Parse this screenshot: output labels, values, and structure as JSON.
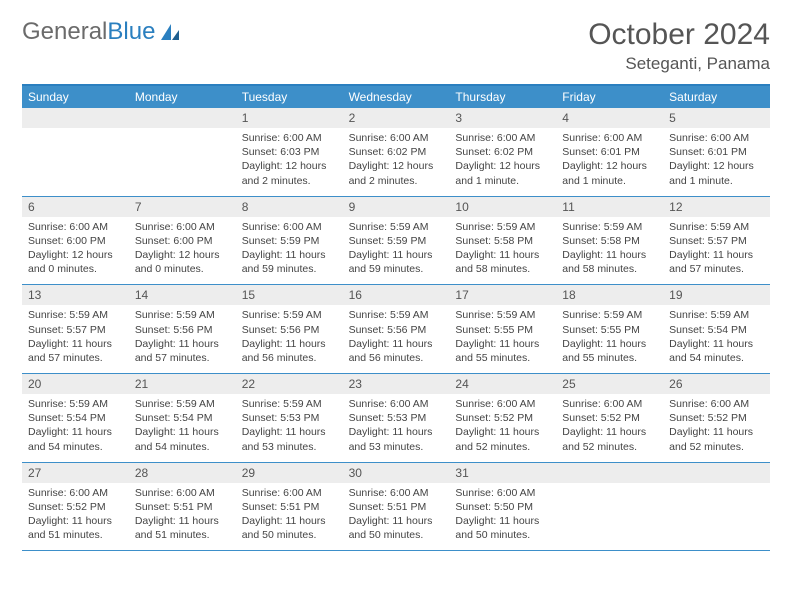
{
  "logo": {
    "text1": "General",
    "text2": "Blue"
  },
  "title": "October 2024",
  "location": "Seteganti, Panama",
  "colors": {
    "header_bg": "#3d8fc9",
    "border": "#2a7fbf",
    "daynum_bg": "#ededed",
    "text": "#444444"
  },
  "weekdays": [
    "Sunday",
    "Monday",
    "Tuesday",
    "Wednesday",
    "Thursday",
    "Friday",
    "Saturday"
  ],
  "weeks": [
    {
      "nums": [
        "",
        "",
        "1",
        "2",
        "3",
        "4",
        "5"
      ],
      "cells": [
        {
          "sunrise": "",
          "sunset": "",
          "daylight": ""
        },
        {
          "sunrise": "",
          "sunset": "",
          "daylight": ""
        },
        {
          "sunrise": "Sunrise: 6:00 AM",
          "sunset": "Sunset: 6:03 PM",
          "daylight": "Daylight: 12 hours and 2 minutes."
        },
        {
          "sunrise": "Sunrise: 6:00 AM",
          "sunset": "Sunset: 6:02 PM",
          "daylight": "Daylight: 12 hours and 2 minutes."
        },
        {
          "sunrise": "Sunrise: 6:00 AM",
          "sunset": "Sunset: 6:02 PM",
          "daylight": "Daylight: 12 hours and 1 minute."
        },
        {
          "sunrise": "Sunrise: 6:00 AM",
          "sunset": "Sunset: 6:01 PM",
          "daylight": "Daylight: 12 hours and 1 minute."
        },
        {
          "sunrise": "Sunrise: 6:00 AM",
          "sunset": "Sunset: 6:01 PM",
          "daylight": "Daylight: 12 hours and 1 minute."
        }
      ]
    },
    {
      "nums": [
        "6",
        "7",
        "8",
        "9",
        "10",
        "11",
        "12"
      ],
      "cells": [
        {
          "sunrise": "Sunrise: 6:00 AM",
          "sunset": "Sunset: 6:00 PM",
          "daylight": "Daylight: 12 hours and 0 minutes."
        },
        {
          "sunrise": "Sunrise: 6:00 AM",
          "sunset": "Sunset: 6:00 PM",
          "daylight": "Daylight: 12 hours and 0 minutes."
        },
        {
          "sunrise": "Sunrise: 6:00 AM",
          "sunset": "Sunset: 5:59 PM",
          "daylight": "Daylight: 11 hours and 59 minutes."
        },
        {
          "sunrise": "Sunrise: 5:59 AM",
          "sunset": "Sunset: 5:59 PM",
          "daylight": "Daylight: 11 hours and 59 minutes."
        },
        {
          "sunrise": "Sunrise: 5:59 AM",
          "sunset": "Sunset: 5:58 PM",
          "daylight": "Daylight: 11 hours and 58 minutes."
        },
        {
          "sunrise": "Sunrise: 5:59 AM",
          "sunset": "Sunset: 5:58 PM",
          "daylight": "Daylight: 11 hours and 58 minutes."
        },
        {
          "sunrise": "Sunrise: 5:59 AM",
          "sunset": "Sunset: 5:57 PM",
          "daylight": "Daylight: 11 hours and 57 minutes."
        }
      ]
    },
    {
      "nums": [
        "13",
        "14",
        "15",
        "16",
        "17",
        "18",
        "19"
      ],
      "cells": [
        {
          "sunrise": "Sunrise: 5:59 AM",
          "sunset": "Sunset: 5:57 PM",
          "daylight": "Daylight: 11 hours and 57 minutes."
        },
        {
          "sunrise": "Sunrise: 5:59 AM",
          "sunset": "Sunset: 5:56 PM",
          "daylight": "Daylight: 11 hours and 57 minutes."
        },
        {
          "sunrise": "Sunrise: 5:59 AM",
          "sunset": "Sunset: 5:56 PM",
          "daylight": "Daylight: 11 hours and 56 minutes."
        },
        {
          "sunrise": "Sunrise: 5:59 AM",
          "sunset": "Sunset: 5:56 PM",
          "daylight": "Daylight: 11 hours and 56 minutes."
        },
        {
          "sunrise": "Sunrise: 5:59 AM",
          "sunset": "Sunset: 5:55 PM",
          "daylight": "Daylight: 11 hours and 55 minutes."
        },
        {
          "sunrise": "Sunrise: 5:59 AM",
          "sunset": "Sunset: 5:55 PM",
          "daylight": "Daylight: 11 hours and 55 minutes."
        },
        {
          "sunrise": "Sunrise: 5:59 AM",
          "sunset": "Sunset: 5:54 PM",
          "daylight": "Daylight: 11 hours and 54 minutes."
        }
      ]
    },
    {
      "nums": [
        "20",
        "21",
        "22",
        "23",
        "24",
        "25",
        "26"
      ],
      "cells": [
        {
          "sunrise": "Sunrise: 5:59 AM",
          "sunset": "Sunset: 5:54 PM",
          "daylight": "Daylight: 11 hours and 54 minutes."
        },
        {
          "sunrise": "Sunrise: 5:59 AM",
          "sunset": "Sunset: 5:54 PM",
          "daylight": "Daylight: 11 hours and 54 minutes."
        },
        {
          "sunrise": "Sunrise: 5:59 AM",
          "sunset": "Sunset: 5:53 PM",
          "daylight": "Daylight: 11 hours and 53 minutes."
        },
        {
          "sunrise": "Sunrise: 6:00 AM",
          "sunset": "Sunset: 5:53 PM",
          "daylight": "Daylight: 11 hours and 53 minutes."
        },
        {
          "sunrise": "Sunrise: 6:00 AM",
          "sunset": "Sunset: 5:52 PM",
          "daylight": "Daylight: 11 hours and 52 minutes."
        },
        {
          "sunrise": "Sunrise: 6:00 AM",
          "sunset": "Sunset: 5:52 PM",
          "daylight": "Daylight: 11 hours and 52 minutes."
        },
        {
          "sunrise": "Sunrise: 6:00 AM",
          "sunset": "Sunset: 5:52 PM",
          "daylight": "Daylight: 11 hours and 52 minutes."
        }
      ]
    },
    {
      "nums": [
        "27",
        "28",
        "29",
        "30",
        "31",
        "",
        ""
      ],
      "cells": [
        {
          "sunrise": "Sunrise: 6:00 AM",
          "sunset": "Sunset: 5:52 PM",
          "daylight": "Daylight: 11 hours and 51 minutes."
        },
        {
          "sunrise": "Sunrise: 6:00 AM",
          "sunset": "Sunset: 5:51 PM",
          "daylight": "Daylight: 11 hours and 51 minutes."
        },
        {
          "sunrise": "Sunrise: 6:00 AM",
          "sunset": "Sunset: 5:51 PM",
          "daylight": "Daylight: 11 hours and 50 minutes."
        },
        {
          "sunrise": "Sunrise: 6:00 AM",
          "sunset": "Sunset: 5:51 PM",
          "daylight": "Daylight: 11 hours and 50 minutes."
        },
        {
          "sunrise": "Sunrise: 6:00 AM",
          "sunset": "Sunset: 5:50 PM",
          "daylight": "Daylight: 11 hours and 50 minutes."
        },
        {
          "sunrise": "",
          "sunset": "",
          "daylight": ""
        },
        {
          "sunrise": "",
          "sunset": "",
          "daylight": ""
        }
      ]
    }
  ]
}
